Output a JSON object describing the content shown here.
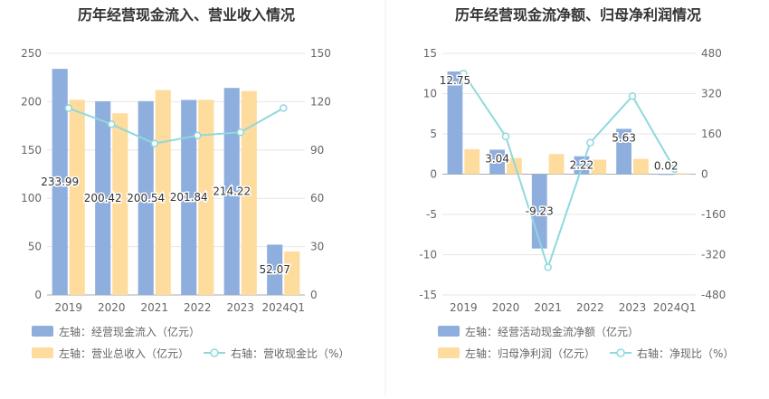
{
  "chart_data": [
    {
      "type": "bar",
      "title": "历年经营现金流入、营业收入情况",
      "categories": [
        "2019",
        "2020",
        "2021",
        "2022",
        "2023",
        "2024Q1"
      ],
      "y_left_ticks": [
        "0",
        "50",
        "100",
        "150",
        "200",
        "250"
      ],
      "y_right_ticks": [
        "0",
        "30",
        "60",
        "90",
        "120",
        "150"
      ],
      "ylim_left": [
        0,
        250
      ],
      "ylim_right": [
        0,
        150
      ],
      "series": [
        {
          "name": "左轴：经营现金流入（亿元）",
          "type": "bar",
          "axis": "left",
          "color": "#8eaedd",
          "values": [
            233.99,
            200.42,
            200.54,
            201.84,
            214.22,
            52.07
          ],
          "labels": [
            "233.99",
            "200.42",
            "200.54",
            "201.84",
            "214.22",
            "52.07"
          ]
        },
        {
          "name": "左轴：营业总收入（亿元）",
          "type": "bar",
          "axis": "left",
          "color": "#fedc9d",
          "values": [
            202,
            188,
            212,
            202,
            211,
            45
          ]
        },
        {
          "name": "右轴：营收现金比（%）",
          "type": "line",
          "axis": "right",
          "color": "#8fd9dc",
          "values": [
            116,
            106,
            94,
            99,
            101,
            116
          ]
        }
      ],
      "legend_position": "bottom",
      "grid": true
    },
    {
      "type": "bar",
      "title": "历年经营现金流净额、归母净利润情况",
      "categories": [
        "2019",
        "2020",
        "2021",
        "2022",
        "2023",
        "2024Q1"
      ],
      "y_left_ticks": [
        "15",
        "10",
        "5",
        "0",
        "-5",
        "-10",
        "-15"
      ],
      "y_right_ticks": [
        "480",
        "320",
        "160",
        "0",
        "-160",
        "-320",
        "-480"
      ],
      "ylim_left": [
        -15,
        15
      ],
      "ylim_right": [
        -480,
        480
      ],
      "series": [
        {
          "name": "左轴：经营活动现金流净额（亿元）",
          "type": "bar",
          "axis": "left",
          "color": "#8eaedd",
          "values": [
            12.75,
            3.04,
            -9.23,
            2.22,
            5.63,
            0.02
          ],
          "labels": [
            "12.75",
            "3.04",
            "-9.23",
            "2.22",
            "5.63",
            "0.02"
          ]
        },
        {
          "name": "左轴：归母净利润（亿元）",
          "type": "bar",
          "axis": "left",
          "color": "#fedc9d",
          "values": [
            3.1,
            2.0,
            2.5,
            1.8,
            1.9,
            0.1
          ]
        },
        {
          "name": "右轴：净现比（%）",
          "type": "line",
          "axis": "right",
          "color": "#8fd9dc",
          "values": [
            400,
            150,
            -370,
            125,
            310,
            20
          ]
        }
      ],
      "legend_position": "bottom",
      "grid": true
    }
  ]
}
